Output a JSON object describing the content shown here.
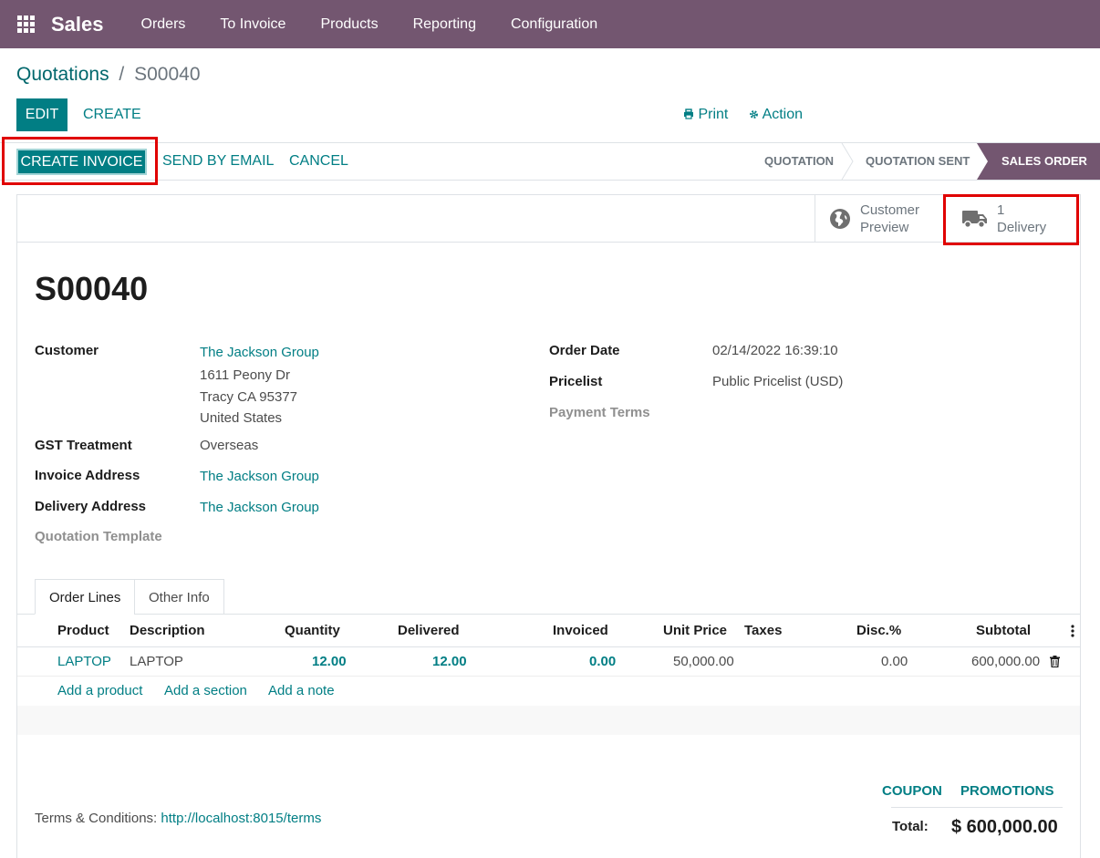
{
  "navbar": {
    "brand": "Sales",
    "items": [
      "Orders",
      "To Invoice",
      "Products",
      "Reporting",
      "Configuration"
    ]
  },
  "breadcrumb": {
    "parent": "Quotations",
    "separator": "/",
    "current": "S00040"
  },
  "control": {
    "edit": "EDIT",
    "create": "CREATE",
    "print": "Print",
    "action": "Action"
  },
  "statusbar": {
    "create_invoice": "CREATE INVOICE",
    "send_email": "SEND BY EMAIL",
    "cancel": "CANCEL",
    "stages": [
      "QUOTATION",
      "QUOTATION SENT",
      "SALES ORDER"
    ],
    "active_stage": "SALES ORDER"
  },
  "smart_buttons": {
    "preview": {
      "line1": "Customer",
      "line2": "Preview",
      "icon": "globe-icon"
    },
    "delivery": {
      "count": "1",
      "label": "Delivery",
      "icon": "truck-icon"
    }
  },
  "record": {
    "name": "S00040",
    "customer_label": "Customer",
    "customer_name": "The Jackson Group",
    "address_1": "1611 Peony Dr",
    "address_2": "Tracy CA 95377",
    "address_3": "United States",
    "gst_label": "GST Treatment",
    "gst_value": "Overseas",
    "invoice_address_label": "Invoice Address",
    "invoice_address_value": "The Jackson Group",
    "delivery_address_label": "Delivery Address",
    "delivery_address_value": "The Jackson Group",
    "quotation_template_label": "Quotation Template",
    "order_date_label": "Order Date",
    "order_date_value": "02/14/2022 16:39:10",
    "pricelist_label": "Pricelist",
    "pricelist_value": "Public Pricelist (USD)",
    "payment_terms_label": "Payment Terms"
  },
  "tabs": [
    "Order Lines",
    "Other Info"
  ],
  "table": {
    "headers": {
      "product": "Product",
      "description": "Description",
      "quantity": "Quantity",
      "delivered": "Delivered",
      "invoiced": "Invoiced",
      "unit_price": "Unit Price",
      "taxes": "Taxes",
      "disc": "Disc.%",
      "subtotal": "Subtotal"
    },
    "rows": [
      {
        "product": "LAPTOP",
        "description": "LAPTOP",
        "quantity": "12.00",
        "delivered": "12.00",
        "invoiced": "0.00",
        "unit_price": "50,000.00",
        "taxes": "",
        "disc": "0.00",
        "subtotal": "600,000.00"
      }
    ],
    "add_product": "Add a product",
    "add_section": "Add a section",
    "add_note": "Add a note"
  },
  "footer": {
    "coupon": "COUPON",
    "promotions": "PROMOTIONS",
    "total_label": "Total:",
    "total_value": "$ 600,000.00",
    "terms_label": "Terms & Conditions:",
    "terms_link": "http://localhost:8015/terms"
  },
  "colors": {
    "navbar": "#735670",
    "primary": "#017e84",
    "highlight": "#e00000"
  }
}
